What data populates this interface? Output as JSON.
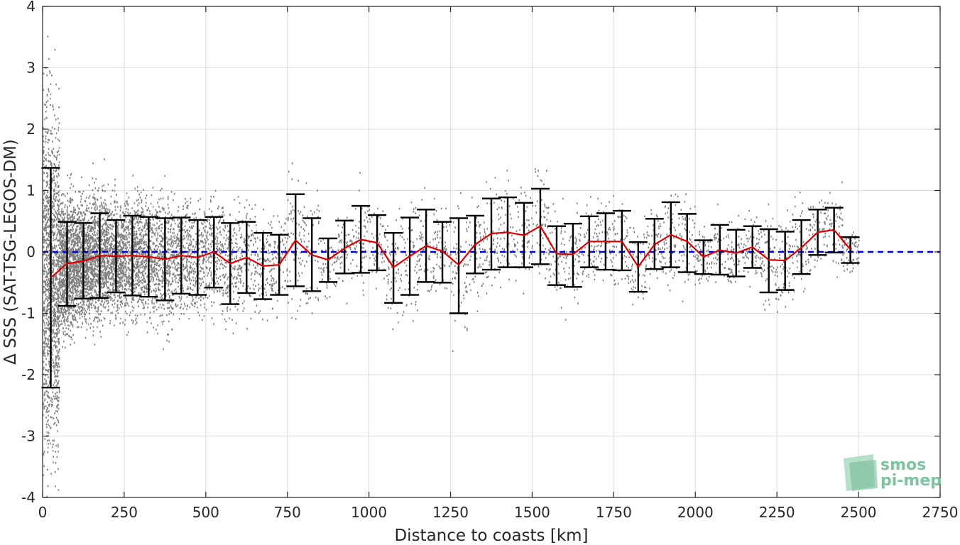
{
  "chart_data": {
    "type": "scatter",
    "xlabel": "Distance to coasts [km]",
    "ylabel": "Δ SSS (SAT-TSG-LEGOS-DM)",
    "xlim": [
      0,
      2750
    ],
    "ylim": [
      -4,
      4
    ],
    "xticks": [
      "0",
      "250",
      "500",
      "750",
      "1000",
      "1250",
      "1500",
      "1750",
      "2000",
      "2250",
      "2500",
      "2750"
    ],
    "yticks": [
      "4",
      "3",
      "2",
      "1",
      "0",
      "-1",
      "-2",
      "-3",
      "-4"
    ],
    "grid": true,
    "reference_line": {
      "y": 0,
      "color": "#0000e0",
      "style": "dashed"
    },
    "scatter_color": "#808080",
    "mean_color": "#e00000",
    "errorbar_color": "#000000",
    "series": [
      {
        "kind": "errorbar",
        "x": [
          25,
          75,
          125,
          175,
          225,
          275,
          325,
          375,
          425,
          475,
          525,
          575,
          625,
          675,
          725,
          775,
          825,
          875,
          925,
          975,
          1025,
          1075,
          1125,
          1175,
          1225,
          1275,
          1325,
          1375,
          1425,
          1475,
          1525,
          1575,
          1625,
          1675,
          1725,
          1775,
          1825,
          1875,
          1925,
          1975,
          2025,
          2075,
          2125,
          2175,
          2225,
          2275,
          2325,
          2375,
          2425,
          2475
        ],
        "mean": [
          -0.42,
          -0.19,
          -0.15,
          -0.06,
          -0.07,
          -0.06,
          -0.08,
          -0.12,
          -0.06,
          -0.09,
          0.0,
          -0.19,
          -0.09,
          -0.23,
          -0.21,
          0.19,
          -0.05,
          -0.13,
          0.06,
          0.2,
          0.15,
          -0.25,
          -0.07,
          0.1,
          0.01,
          -0.21,
          0.12,
          0.3,
          0.32,
          0.27,
          0.42,
          -0.03,
          -0.04,
          0.17,
          0.17,
          0.17,
          -0.24,
          0.12,
          0.28,
          0.17,
          -0.08,
          0.03,
          -0.02,
          0.08,
          -0.13,
          -0.14,
          0.07,
          0.32,
          0.36,
          0.04
        ],
        "upper": [
          1.37,
          0.49,
          0.47,
          0.63,
          0.52,
          0.59,
          0.57,
          0.55,
          0.56,
          0.52,
          0.57,
          0.47,
          0.49,
          0.31,
          0.28,
          0.94,
          0.55,
          0.22,
          0.51,
          0.75,
          0.6,
          0.31,
          0.56,
          0.69,
          0.49,
          0.55,
          0.59,
          0.87,
          0.89,
          0.8,
          1.03,
          0.42,
          0.46,
          0.58,
          0.63,
          0.67,
          0.16,
          0.54,
          0.81,
          0.62,
          0.19,
          0.44,
          0.36,
          0.42,
          0.37,
          0.33,
          0.52,
          0.69,
          0.72,
          0.24
        ],
        "lower": [
          -2.21,
          -0.88,
          -0.76,
          -0.75,
          -0.66,
          -0.71,
          -0.73,
          -0.79,
          -0.68,
          -0.7,
          -0.58,
          -0.85,
          -0.67,
          -0.77,
          -0.7,
          -0.56,
          -0.64,
          -0.49,
          -0.35,
          -0.34,
          -0.3,
          -0.83,
          -0.7,
          -0.49,
          -0.5,
          -1.0,
          -0.35,
          -0.29,
          -0.25,
          -0.25,
          -0.2,
          -0.54,
          -0.57,
          -0.25,
          -0.29,
          -0.3,
          -0.65,
          -0.28,
          -0.25,
          -0.33,
          -0.36,
          -0.37,
          -0.4,
          -0.26,
          -0.66,
          -0.62,
          -0.36,
          -0.05,
          -0.01,
          -0.18
        ]
      }
    ]
  },
  "logo": {
    "line1": "smos",
    "line2": "pi-mep"
  }
}
